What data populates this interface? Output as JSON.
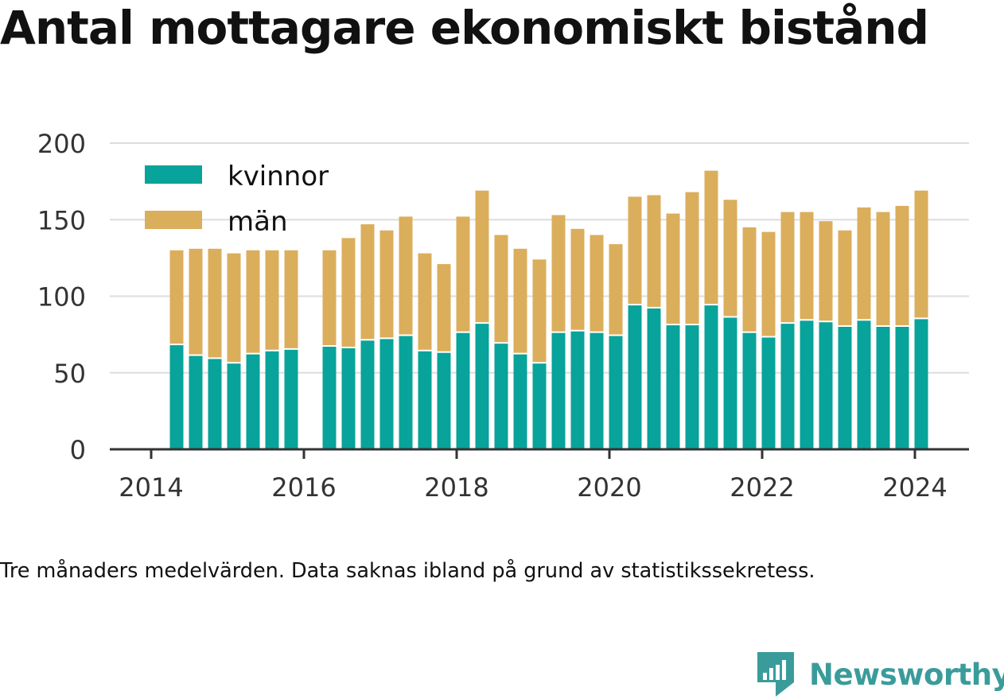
{
  "title": "Antal mottagare ekonomiskt bistånd",
  "note": "Tre månaders medelvärden. Data saknas ibland på grund av statistikssekretess.",
  "brand": "Newsworthy",
  "colors": {
    "kvinnor": "#08a39a",
    "man": "#dbae5c",
    "grid": "#dddddd",
    "axis": "#333333",
    "tick_text": "#333333",
    "brand": "#3a9c9a"
  },
  "chart_data": {
    "type": "bar",
    "stacked": true,
    "x_ticks": [
      "2014",
      "2016",
      "2018",
      "2020",
      "2022",
      "2024"
    ],
    "y_ticks": [
      "0",
      "50",
      "100",
      "150",
      "200"
    ],
    "ylim": [
      0,
      200
    ],
    "xlim": [
      "2014-01",
      "2024-08"
    ],
    "grid": true,
    "legend_position": "top-left",
    "categories": [
      "2014-05",
      "2014-08",
      "2014-11",
      "2015-02",
      "2015-05",
      "2015-08",
      "2015-11",
      "2016-02",
      "2016-05",
      "2016-08",
      "2016-11",
      "2017-02",
      "2017-05",
      "2017-08",
      "2017-11",
      "2018-02",
      "2018-05",
      "2018-08",
      "2018-11",
      "2019-02",
      "2019-05",
      "2019-08",
      "2019-11",
      "2020-02",
      "2020-05",
      "2020-08",
      "2020-11",
      "2021-02",
      "2021-05",
      "2021-08",
      "2021-11",
      "2022-02",
      "2022-05",
      "2022-08",
      "2022-11",
      "2023-02",
      "2023-05",
      "2023-08",
      "2023-11",
      "2024-02"
    ],
    "series": [
      {
        "name": "kvinnor",
        "color": "#08a39a",
        "values": [
          68,
          61,
          59,
          56,
          62,
          64,
          65,
          null,
          67,
          66,
          71,
          72,
          74,
          64,
          63,
          76,
          82,
          69,
          62,
          56,
          76,
          77,
          76,
          74,
          94,
          92,
          81,
          81,
          94,
          86,
          76,
          73,
          82,
          84,
          83,
          80,
          84,
          80,
          80,
          85
        ]
      },
      {
        "name": "män",
        "color": "#dbae5c",
        "values": [
          62,
          70,
          72,
          72,
          68,
          66,
          65,
          null,
          63,
          72,
          76,
          71,
          78,
          64,
          58,
          76,
          87,
          71,
          69,
          68,
          77,
          67,
          64,
          60,
          71,
          74,
          73,
          87,
          88,
          77,
          69,
          69,
          73,
          71,
          66,
          63,
          74,
          75,
          79,
          84
        ]
      }
    ]
  }
}
